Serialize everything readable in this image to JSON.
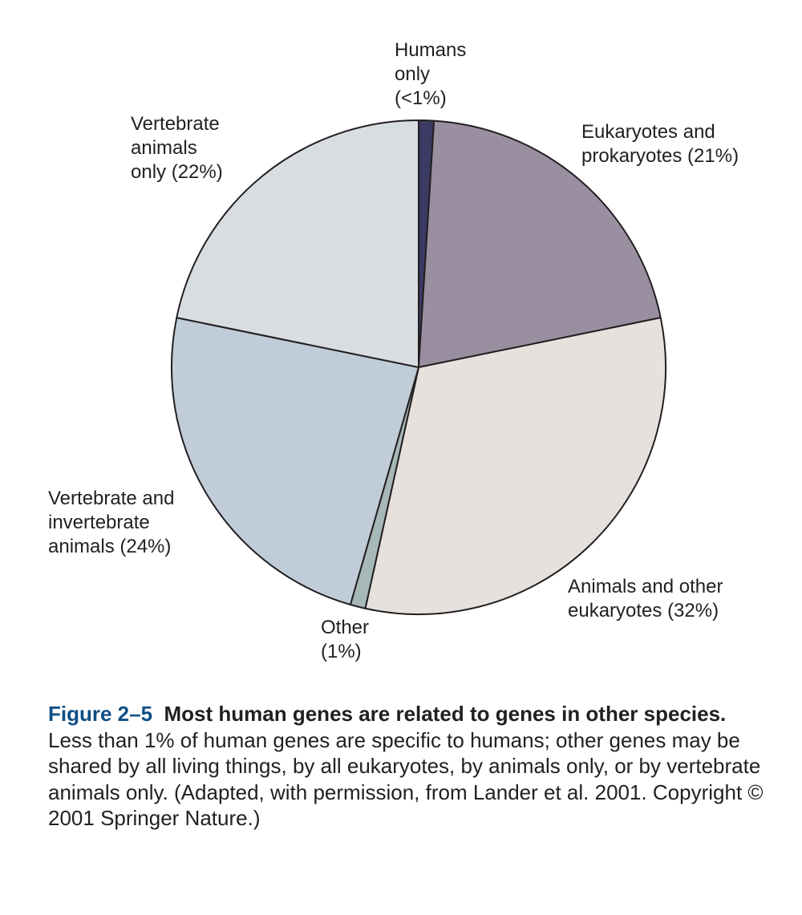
{
  "chart_data": {
    "type": "pie",
    "start": "12 o'clock",
    "direction": "clockwise",
    "slices": [
      {
        "label_lines": [
          "Humans",
          "only",
          "(<1%)"
        ],
        "value": 1,
        "display": "<1%",
        "color": "#3b3a63"
      },
      {
        "label_lines": [
          "Eukaryotes and",
          "prokaryotes (21%)"
        ],
        "value": 21,
        "color": "#9a8fa1"
      },
      {
        "label_lines": [
          "Animals and other",
          "eukaryotes (32%)"
        ],
        "value": 32,
        "color": "#e6e1dd"
      },
      {
        "label_lines": [
          "Other",
          "(1%)"
        ],
        "value": 1,
        "color": "#a6b8b7"
      },
      {
        "label_lines": [
          "Vertebrate and",
          "invertebrate",
          "animals (24%)"
        ],
        "value": 24,
        "color": "#c0cdd9"
      },
      {
        "label_lines": [
          "Vertebrate",
          "animals",
          "only (22%)"
        ],
        "value": 22,
        "color": "#d8dde1"
      }
    ]
  },
  "caption": {
    "figure_number": "Figure 2–5",
    "headline": "Most human genes are related to genes in other species.",
    "body": "Less than 1% of human genes are specific to humans; other genes may be shared by all living things, by all eukaryotes, by animals only, or by vertebrate animals only. (Adapted, with permission, from Lander et al. 2001. Copyright © 2001 Springer Nature.)"
  }
}
